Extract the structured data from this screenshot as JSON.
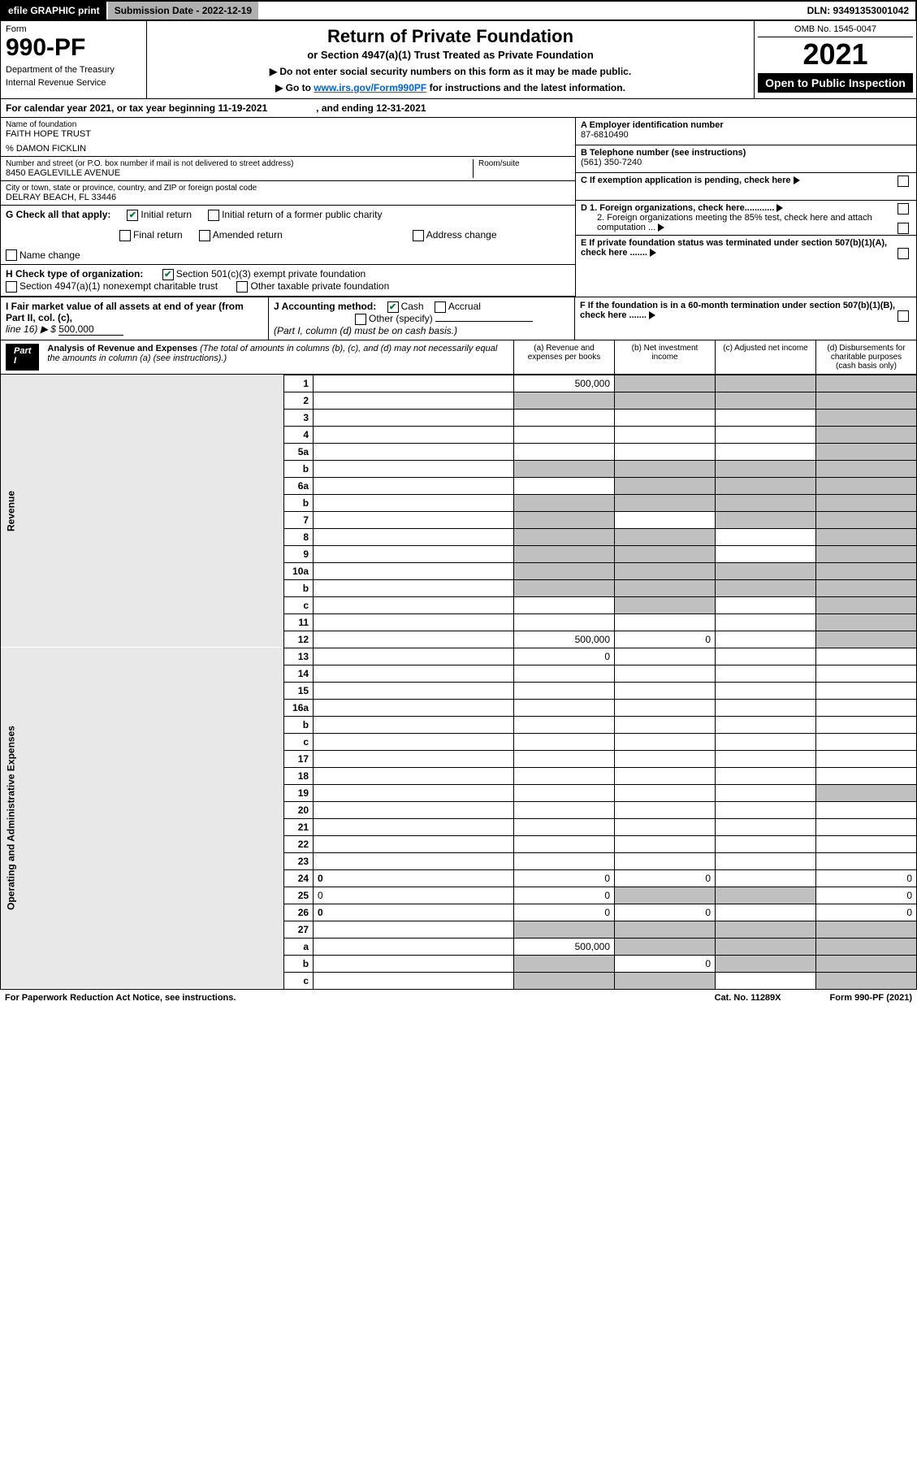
{
  "topbar": {
    "efile": "efile GRAPHIC print",
    "submission_label": "Submission Date - 2022-12-19",
    "dln": "DLN: 93491353001042"
  },
  "header": {
    "form_word": "Form",
    "form_no": "990-PF",
    "dept": "Department of the Treasury",
    "irs": "Internal Revenue Service",
    "title": "Return of Private Foundation",
    "subtitle": "or Section 4947(a)(1) Trust Treated as Private Foundation",
    "note1": "▶ Do not enter social security numbers on this form as it may be made public.",
    "note2_pre": "▶ Go to ",
    "note2_link": "www.irs.gov/Form990PF",
    "note2_post": " for instructions and the latest information.",
    "omb": "OMB No. 1545-0047",
    "year": "2021",
    "open": "Open to Public Inspection"
  },
  "period": {
    "text": "For calendar year 2021, or tax year beginning 11-19-2021",
    "ending": ", and ending 12-31-2021"
  },
  "foundation": {
    "name_lbl": "Name of foundation",
    "name": "FAITH HOPE TRUST",
    "care_of": "% DAMON FICKLIN",
    "addr_lbl": "Number and street (or P.O. box number if mail is not delivered to street address)",
    "addr": "8450 EAGLEVILLE AVENUE",
    "room_lbl": "Room/suite",
    "city_lbl": "City or town, state or province, country, and ZIP or foreign postal code",
    "city": "DELRAY BEACH, FL  33446"
  },
  "right": {
    "a_lbl": "A Employer identification number",
    "a_val": "87-6810490",
    "b_lbl": "B Telephone number (see instructions)",
    "b_val": "(561) 350-7240",
    "c_lbl": "C If exemption application is pending, check here",
    "d1_lbl": "D 1. Foreign organizations, check here............",
    "d2_lbl": "2. Foreign organizations meeting the 85% test, check here and attach computation ...",
    "e_lbl": "E If private foundation status was terminated under section 507(b)(1)(A), check here .......",
    "f_lbl": "F If the foundation is in a 60-month termination under section 507(b)(1)(B), check here ......."
  },
  "g": {
    "label": "G Check all that apply:",
    "initial": "Initial return",
    "initial_former": "Initial return of a former public charity",
    "final": "Final return",
    "amended": "Amended return",
    "addr_change": "Address change",
    "name_change": "Name change"
  },
  "h": {
    "label": "H Check type of organization:",
    "opt1": "Section 501(c)(3) exempt private foundation",
    "opt2": "Section 4947(a)(1) nonexempt charitable trust",
    "opt3": "Other taxable private foundation"
  },
  "i": {
    "label": "I Fair market value of all assets at end of year (from Part II, col. (c),",
    "line": "line 16) ▶ $",
    "value": "500,000"
  },
  "j": {
    "label": "J Accounting method:",
    "cash": "Cash",
    "accrual": "Accrual",
    "other": "Other (specify)",
    "note": "(Part I, column (d) must be on cash basis.)"
  },
  "part1": {
    "label": "Part I",
    "title": "Analysis of Revenue and Expenses",
    "note": "(The total of amounts in columns (b), (c), and (d) may not necessarily equal the amounts in column (a) (see instructions).)",
    "col_a": "(a) Revenue and expenses per books",
    "col_b": "(b) Net investment income",
    "col_c": "(c) Adjusted net income",
    "col_d": "(d) Disbursements for charitable purposes (cash basis only)"
  },
  "sections": {
    "revenue": "Revenue",
    "operating": "Operating and Administrative Expenses"
  },
  "rows": [
    {
      "n": "1",
      "d": "",
      "a": "500,000",
      "b": "",
      "c": "",
      "shade": [
        "b",
        "c",
        "d"
      ]
    },
    {
      "n": "2",
      "d": "",
      "a": "",
      "b": "",
      "c": "",
      "shade": [
        "a",
        "b",
        "c",
        "d"
      ]
    },
    {
      "n": "3",
      "d": "",
      "a": "",
      "b": "",
      "c": "",
      "shade": [
        "d"
      ]
    },
    {
      "n": "4",
      "d": "",
      "a": "",
      "b": "",
      "c": "",
      "shade": [
        "d"
      ]
    },
    {
      "n": "5a",
      "d": "",
      "a": "",
      "b": "",
      "c": "",
      "shade": [
        "d"
      ]
    },
    {
      "n": "b",
      "d": "",
      "a": "",
      "b": "",
      "c": "",
      "shade": [
        "a",
        "b",
        "c",
        "d"
      ]
    },
    {
      "n": "6a",
      "d": "",
      "a": "",
      "b": "",
      "c": "",
      "shade": [
        "b",
        "c",
        "d"
      ]
    },
    {
      "n": "b",
      "d": "",
      "a": "",
      "b": "",
      "c": "",
      "shade": [
        "a",
        "b",
        "c",
        "d"
      ]
    },
    {
      "n": "7",
      "d": "",
      "a": "",
      "b": "",
      "c": "",
      "shade": [
        "a",
        "c",
        "d"
      ]
    },
    {
      "n": "8",
      "d": "",
      "a": "",
      "b": "",
      "c": "",
      "shade": [
        "a",
        "b",
        "d"
      ]
    },
    {
      "n": "9",
      "d": "",
      "a": "",
      "b": "",
      "c": "",
      "shade": [
        "a",
        "b",
        "d"
      ]
    },
    {
      "n": "10a",
      "d": "",
      "a": "",
      "b": "",
      "c": "",
      "shade": [
        "a",
        "b",
        "c",
        "d"
      ]
    },
    {
      "n": "b",
      "d": "",
      "a": "",
      "b": "",
      "c": "",
      "shade": [
        "a",
        "b",
        "c",
        "d"
      ]
    },
    {
      "n": "c",
      "d": "",
      "a": "",
      "b": "",
      "c": "",
      "shade": [
        "b",
        "d"
      ]
    },
    {
      "n": "11",
      "d": "",
      "a": "",
      "b": "",
      "c": "",
      "shade": [
        "d"
      ]
    },
    {
      "n": "12",
      "d": "",
      "a": "500,000",
      "b": "0",
      "c": "",
      "shade": [
        "d"
      ],
      "bold": true
    }
  ],
  "exp_rows": [
    {
      "n": "13",
      "d": "",
      "a": "0",
      "b": "",
      "c": "",
      "shade": []
    },
    {
      "n": "14",
      "d": "",
      "a": "",
      "b": "",
      "c": "",
      "shade": []
    },
    {
      "n": "15",
      "d": "",
      "a": "",
      "b": "",
      "c": "",
      "shade": []
    },
    {
      "n": "16a",
      "d": "",
      "a": "",
      "b": "",
      "c": "",
      "shade": []
    },
    {
      "n": "b",
      "d": "",
      "a": "",
      "b": "",
      "c": "",
      "shade": []
    },
    {
      "n": "c",
      "d": "",
      "a": "",
      "b": "",
      "c": "",
      "shade": []
    },
    {
      "n": "17",
      "d": "",
      "a": "",
      "b": "",
      "c": "",
      "shade": []
    },
    {
      "n": "18",
      "d": "",
      "a": "",
      "b": "",
      "c": "",
      "shade": []
    },
    {
      "n": "19",
      "d": "",
      "a": "",
      "b": "",
      "c": "",
      "shade": [
        "d"
      ]
    },
    {
      "n": "20",
      "d": "",
      "a": "",
      "b": "",
      "c": "",
      "shade": []
    },
    {
      "n": "21",
      "d": "",
      "a": "",
      "b": "",
      "c": "",
      "shade": []
    },
    {
      "n": "22",
      "d": "",
      "a": "",
      "b": "",
      "c": "",
      "shade": []
    },
    {
      "n": "23",
      "d": "",
      "a": "",
      "b": "",
      "c": "",
      "shade": []
    },
    {
      "n": "24",
      "d": "0",
      "a": "0",
      "b": "0",
      "c": "",
      "shade": [],
      "bold": true
    },
    {
      "n": "25",
      "d": "0",
      "a": "0",
      "b": "",
      "c": "",
      "shade": [
        "b",
        "c"
      ]
    },
    {
      "n": "26",
      "d": "0",
      "a": "0",
      "b": "0",
      "c": "",
      "shade": [],
      "bold": true
    },
    {
      "n": "27",
      "d": "",
      "a": "",
      "b": "",
      "c": "",
      "shade": [
        "a",
        "b",
        "c",
        "d"
      ]
    },
    {
      "n": "a",
      "d": "",
      "a": "500,000",
      "b": "",
      "c": "",
      "shade": [
        "b",
        "c",
        "d"
      ],
      "bold": true
    },
    {
      "n": "b",
      "d": "",
      "a": "",
      "b": "0",
      "c": "",
      "shade": [
        "a",
        "c",
        "d"
      ],
      "bold": true
    },
    {
      "n": "c",
      "d": "",
      "a": "",
      "b": "",
      "c": "",
      "shade": [
        "a",
        "b",
        "d"
      ],
      "bold": true
    }
  ],
  "footer": {
    "left": "For Paperwork Reduction Act Notice, see instructions.",
    "mid": "Cat. No. 11289X",
    "right": "Form 990-PF (2021)"
  },
  "colors": {
    "black": "#000000",
    "gray_shade": "#c0c0c0",
    "link": "#0066cc",
    "check_green": "#0a7a3a"
  }
}
